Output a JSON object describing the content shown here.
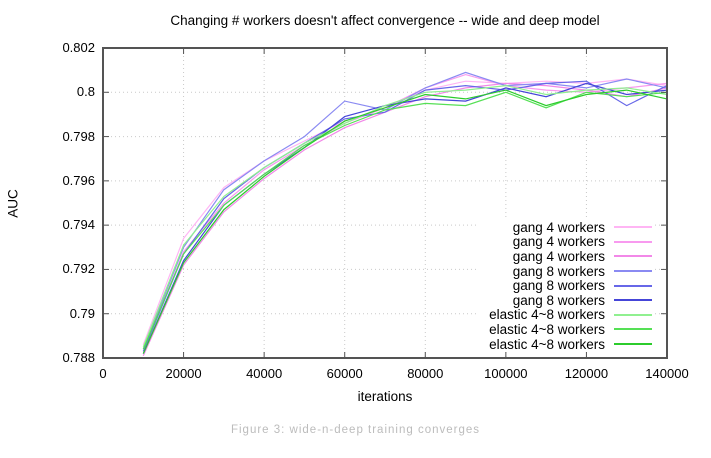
{
  "figure": {
    "caption": "Figure 3: wide-n-deep training converges"
  },
  "colors": {
    "background": "#ffffff",
    "border": "#545454",
    "tick": "#545454",
    "grid": "#c9c9c9",
    "caption_text": "#bcbcbc"
  },
  "chart_data": {
    "type": "line",
    "title": "Changing # workers doesn't affect convergence -- wide and deep model",
    "xlabel": "iterations",
    "ylabel": "AUC",
    "xlim": [
      0,
      140000
    ],
    "ylim": [
      0.788,
      0.802
    ],
    "grid": true,
    "legend_position": "inside-right",
    "x_ticks": [
      0,
      20000,
      40000,
      60000,
      80000,
      100000,
      120000,
      140000
    ],
    "x_tick_labels": [
      "0",
      "20000",
      "40000",
      "60000",
      "80000",
      "100000",
      "120000",
      "140000"
    ],
    "y_ticks": [
      0.788,
      0.79,
      0.792,
      0.794,
      0.796,
      0.798,
      0.8,
      0.802
    ],
    "y_tick_labels": [
      "0.788",
      "0.79",
      "0.792",
      "0.794",
      "0.796",
      "0.798",
      "0.8",
      "0.802"
    ],
    "x": [
      10000,
      20000,
      30000,
      40000,
      50000,
      60000,
      70000,
      80000,
      90000,
      100000,
      110000,
      120000,
      130000,
      140000
    ],
    "series": [
      {
        "label": "gang 4 workers",
        "color": "#ffb5f4",
        "values": [
          0.7886,
          0.7934,
          0.7957,
          0.7969,
          0.7978,
          0.7987,
          0.7993,
          0.8001,
          0.8005,
          0.8004,
          0.8005,
          0.8004,
          0.8006,
          0.8003
        ]
      },
      {
        "label": "gang 4 workers",
        "color": "#f89aef",
        "values": [
          0.7883,
          0.7928,
          0.795,
          0.7965,
          0.7976,
          0.7986,
          0.7993,
          0.8002,
          0.8008,
          0.8003,
          0.8001,
          0.8,
          0.8002,
          0.8004
        ]
      },
      {
        "label": "gang 4 workers",
        "color": "#f288e8",
        "values": [
          0.7881,
          0.7922,
          0.7946,
          0.7961,
          0.7974,
          0.7984,
          0.7991,
          0.7998,
          0.8002,
          0.8004,
          0.8003,
          0.8001,
          0.7998,
          0.8002
        ]
      },
      {
        "label": "gang 8 workers",
        "color": "#8a8af2",
        "values": [
          0.7884,
          0.793,
          0.7956,
          0.7969,
          0.798,
          0.7996,
          0.7992,
          0.8002,
          0.8009,
          0.8003,
          0.8004,
          0.8002,
          0.8006,
          0.8002
        ]
      },
      {
        "label": "gang 8 workers",
        "color": "#6767e8",
        "values": [
          0.7883,
          0.7927,
          0.7952,
          0.7966,
          0.7977,
          0.7988,
          0.7991,
          0.8001,
          0.8003,
          0.8001,
          0.8004,
          0.8005,
          0.7994,
          0.8003
        ]
      },
      {
        "label": "gang 8 workers",
        "color": "#4545d8",
        "values": [
          0.7882,
          0.7924,
          0.7949,
          0.7963,
          0.7975,
          0.7989,
          0.7994,
          0.7997,
          0.7996,
          0.8002,
          0.7998,
          0.8004,
          0.7999,
          0.8001
        ]
      },
      {
        "label": "elastic 4~8 workers",
        "color": "#90f090",
        "values": [
          0.7885,
          0.7931,
          0.7953,
          0.7966,
          0.7977,
          0.7986,
          0.7994,
          0.8,
          0.8001,
          0.8003,
          0.7999,
          0.8001,
          0.8002,
          0.7999
        ]
      },
      {
        "label": "elastic 4~8 workers",
        "color": "#55e055",
        "values": [
          0.7884,
          0.7927,
          0.7949,
          0.7963,
          0.7976,
          0.7985,
          0.7992,
          0.7995,
          0.7994,
          0.8,
          0.7993,
          0.8,
          0.7998,
          0.8
        ]
      },
      {
        "label": "elastic 4~8 workers",
        "color": "#2ccc2c",
        "values": [
          0.7882,
          0.7923,
          0.7947,
          0.7962,
          0.7975,
          0.7987,
          0.7993,
          0.7999,
          0.7997,
          0.8001,
          0.7994,
          0.7999,
          0.8001,
          0.7997
        ]
      }
    ]
  }
}
